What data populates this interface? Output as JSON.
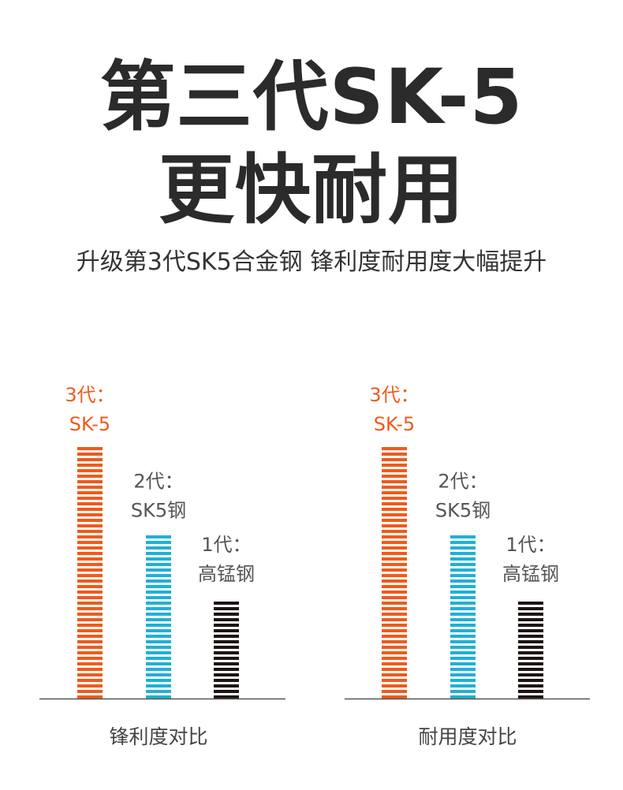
{
  "header": {
    "title_line1": "第三代SK-5",
    "title_line2": "更快耐用",
    "subtitle": "升级第3代SK5合金钢 锋利度耐用度大幅提升"
  },
  "colors": {
    "gen3": "#f05a1a",
    "gen2": "#1fb0d8",
    "gen1": "#1e1414",
    "axis": "#555555",
    "label_dark": "#555555"
  },
  "chart_data": [
    {
      "type": "bar",
      "title": "",
      "xlabel": "锋利度对比",
      "ylabel": "",
      "categories": [
        "3代：SK-5",
        "2代：SK5钢",
        "1代：高锰钢"
      ],
      "category_lines": [
        [
          "3代：",
          "SK-5"
        ],
        [
          "2代：",
          "SK5钢"
        ],
        [
          "1代：",
          "高锰钢"
        ]
      ],
      "values": [
        100,
        66,
        41
      ],
      "ylim": [
        0,
        100
      ],
      "grid": false,
      "legend": "none"
    },
    {
      "type": "bar",
      "title": "",
      "xlabel": "耐用度对比",
      "ylabel": "",
      "categories": [
        "3代：SK-5",
        "2代：SK5钢",
        "1代：高锰钢"
      ],
      "category_lines": [
        [
          "3代：",
          "SK-5"
        ],
        [
          "2代：",
          "SK5钢"
        ],
        [
          "1代：",
          "高锰钢"
        ]
      ],
      "values": [
        100,
        66,
        41
      ],
      "ylim": [
        0,
        100
      ],
      "grid": false,
      "legend": "none"
    }
  ]
}
